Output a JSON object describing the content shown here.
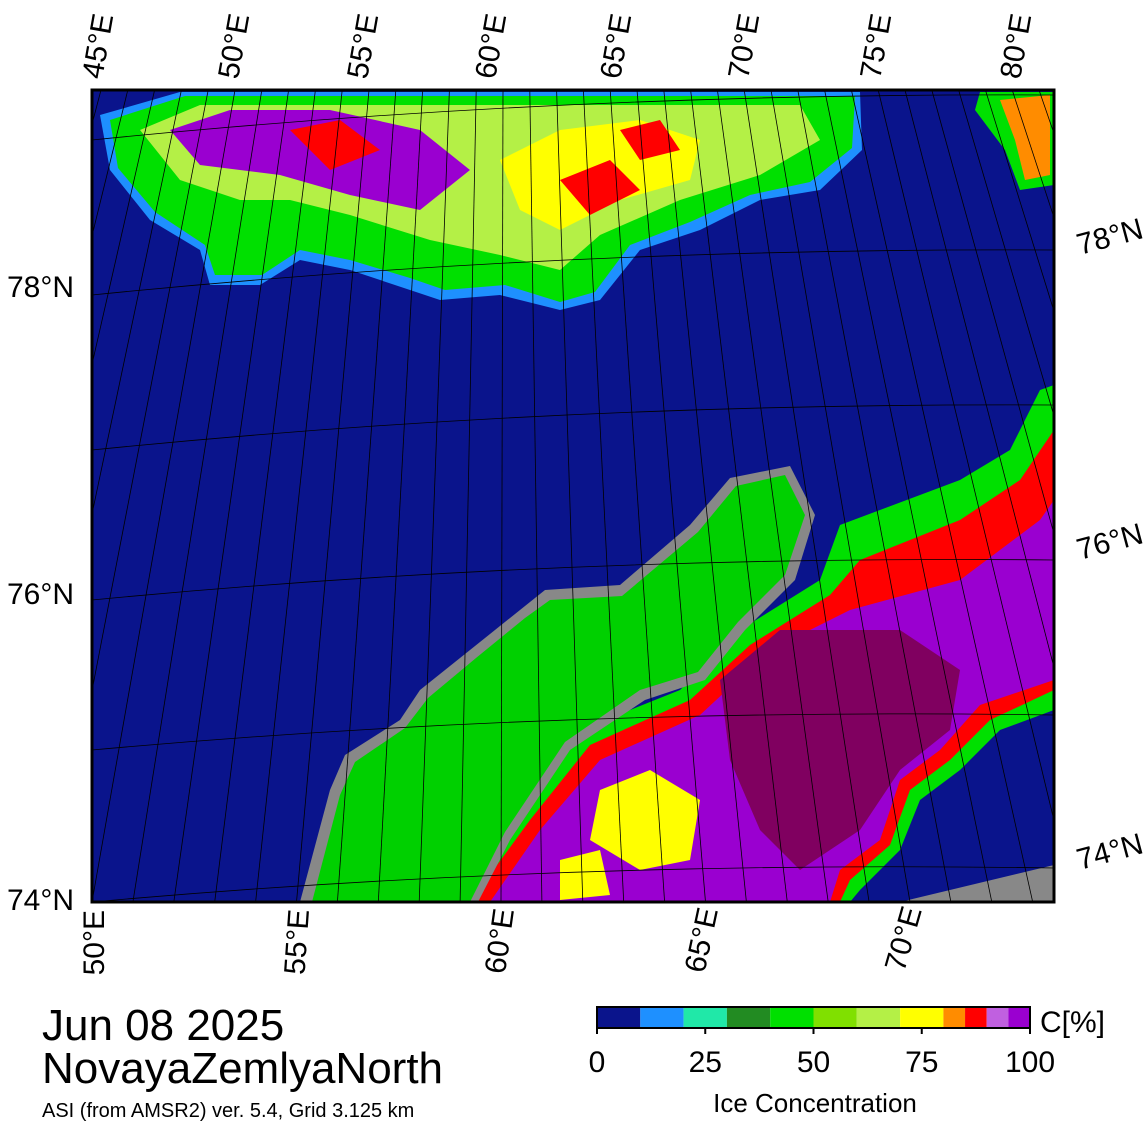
{
  "map": {
    "top_lon_labels": [
      "45°E",
      "50°E",
      "55°E",
      "60°E",
      "65°E",
      "70°E",
      "75°E",
      "80°E"
    ],
    "bottom_lon_labels": [
      "50°E",
      "55°E",
      "60°E",
      "65°E",
      "70°E"
    ],
    "left_lat_labels": [
      "78°N",
      "76°N",
      "74°N"
    ],
    "right_lat_labels": [
      "78°N",
      "76°N",
      "74°N"
    ]
  },
  "date": "Jun 08 2025",
  "region": "NovayaZemlyaNorth",
  "source": "ASI (from AMSR2) ver. 5.4,  Grid 3.125 km",
  "colorbar": {
    "unit": "C[%]",
    "label": "Ice Concentration",
    "lim": [
      0,
      100
    ],
    "ticks": [
      0,
      25,
      50,
      75,
      100
    ],
    "bounds": [
      0,
      10,
      20,
      30,
      40,
      50,
      60,
      70,
      80,
      85,
      90,
      95,
      100
    ],
    "colors": [
      "#0a148c",
      "#1e90ff",
      "#20e8a8",
      "#228b22",
      "#00e000",
      "#80e000",
      "#b4f046",
      "#ffff00",
      "#ff8c00",
      "#ff0000",
      "#c060e0",
      "#9a00d0"
    ]
  }
}
